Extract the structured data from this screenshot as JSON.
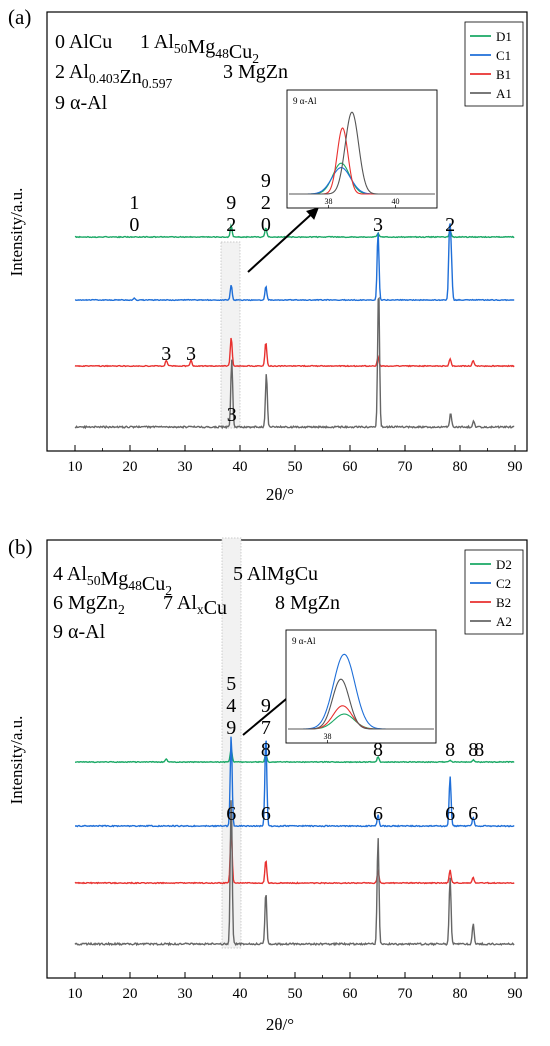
{
  "chart_data": [
    {
      "type": "line",
      "panel": "(a)",
      "xlabel": "2θ/°",
      "ylabel": "Intensity/a.u.",
      "xlim": [
        10,
        90
      ],
      "xticks": [
        "10",
        "20",
        "30",
        "40",
        "50",
        "60",
        "70",
        "80",
        "90"
      ],
      "phase_legend": [
        {
          "n": "0",
          "name": "AlCu"
        },
        {
          "n": "1",
          "name": "Al",
          "sub1": "50",
          "mid": "Mg",
          "sub2": "48",
          "tail": "Cu",
          "sub3": "2"
        },
        {
          "n": "2",
          "name": "Al",
          "sub1": "0.403",
          "mid": "Zn",
          "sub2": "0.597"
        },
        {
          "n": "3",
          "name": "MgZn"
        },
        {
          "n": "9",
          "name": "α-Al"
        }
      ],
      "series": [
        {
          "name": "D1",
          "color": "#1aa865",
          "peaks": [
            [
              38.4,
              0.16
            ],
            [
              44.7,
              0.13
            ],
            [
              65.1,
              0.05
            ],
            [
              78.2,
              0.09
            ]
          ]
        },
        {
          "name": "C1",
          "color": "#1f6fd8",
          "peaks": [
            [
              20.8,
              0.03
            ],
            [
              38.4,
              0.22
            ],
            [
              44.7,
              0.2
            ],
            [
              65.1,
              1.0
            ],
            [
              78.1,
              1.0
            ],
            [
              78.4,
              0.6
            ]
          ]
        },
        {
          "name": "B1",
          "color": "#e8312f",
          "peaks": [
            [
              26.6,
              0.08
            ],
            [
              31.1,
              0.08
            ],
            [
              38.4,
              0.4
            ],
            [
              44.7,
              0.33
            ],
            [
              65.1,
              0.12
            ],
            [
              78.2,
              0.1
            ],
            [
              82.4,
              0.08
            ]
          ]
        },
        {
          "name": "A1",
          "color": "#666666",
          "peaks": [
            [
              38.5,
              0.48
            ],
            [
              44.8,
              0.38
            ],
            [
              65.2,
              1.0
            ],
            [
              78.3,
              0.1
            ],
            [
              82.5,
              0.04
            ]
          ]
        }
      ],
      "annotations": [
        {
          "text": "1",
          "x": 20.8,
          "row": 0,
          "level": 2
        },
        {
          "text": "0",
          "x": 20.8,
          "row": 0,
          "level": 1
        },
        {
          "text": "9",
          "x": 38.4,
          "row": 0,
          "level": 2
        },
        {
          "text": "2",
          "x": 38.4,
          "row": 0,
          "level": 1
        },
        {
          "text": "9",
          "x": 44.7,
          "row": 0,
          "level": 3
        },
        {
          "text": "2",
          "x": 44.7,
          "row": 0,
          "level": 2
        },
        {
          "text": "0",
          "x": 44.7,
          "row": 0,
          "level": 1
        },
        {
          "text": "3",
          "x": 65.1,
          "row": 0,
          "level": 1
        },
        {
          "text": "2",
          "x": 78.2,
          "row": 0,
          "level": 1
        },
        {
          "text": "3",
          "x": 26.6,
          "row": 2,
          "level": 1
        },
        {
          "text": "3",
          "x": 31.1,
          "row": 2,
          "level": 1
        },
        {
          "text": "3",
          "x": 38.5,
          "row": 3,
          "level": 1
        }
      ],
      "inset": {
        "title": "9 α-Al",
        "xticks": [
          "38",
          "40"
        ],
        "peaks": [
          {
            "series": "D1",
            "color": "#1aa865",
            "center": 38.38,
            "height": 0.35,
            "width": 0.25
          },
          {
            "series": "C1",
            "color": "#1f6fd8",
            "center": 38.38,
            "height": 0.3,
            "width": 0.28
          },
          {
            "series": "B1",
            "color": "#e8312f",
            "center": 38.42,
            "height": 0.75,
            "width": 0.16
          },
          {
            "series": "A1",
            "color": "#555555",
            "center": 38.7,
            "height": 0.93,
            "width": 0.2
          }
        ]
      }
    },
    {
      "type": "line",
      "panel": "(b)",
      "xlabel": "2θ/°",
      "ylabel": "Intensity/a.u.",
      "xlim": [
        10,
        90
      ],
      "xticks": [
        "10",
        "20",
        "30",
        "40",
        "50",
        "60",
        "70",
        "80",
        "90"
      ],
      "phase_legend": [
        {
          "n": "4",
          "name": "Al",
          "sub1": "50",
          "mid": "Mg",
          "sub2": "48",
          "tail": "Cu",
          "sub3": "2"
        },
        {
          "n": "5",
          "name": "AlMgCu"
        },
        {
          "n": "6",
          "name": "MgZn",
          "sub1": "2"
        },
        {
          "n": "7",
          "name": "Al",
          "sub1": "x",
          "mid": "Cu"
        },
        {
          "n": "8",
          "name": "MgZn"
        },
        {
          "n": "9",
          "name": "α-Al"
        }
      ],
      "series": [
        {
          "name": "D2",
          "color": "#1aa865",
          "peaks": [
            [
              26.6,
              0.05
            ],
            [
              38.4,
              0.2
            ],
            [
              44.7,
              0.13
            ],
            [
              65.1,
              0.08
            ],
            [
              78.2,
              0.03
            ],
            [
              82.4,
              0.03
            ]
          ]
        },
        {
          "name": "C2",
          "color": "#1f6fd8",
          "peaks": [
            [
              38.4,
              1.0
            ],
            [
              44.7,
              1.0
            ],
            [
              65.1,
              0.12
            ],
            [
              78.2,
              0.55
            ],
            [
              82.4,
              0.1
            ]
          ]
        },
        {
          "name": "B2",
          "color": "#e8312f",
          "peaks": [
            [
              38.4,
              0.7
            ],
            [
              44.7,
              0.3
            ],
            [
              65.1,
              0.15
            ],
            [
              78.2,
              0.17
            ],
            [
              82.4,
              0.07
            ]
          ]
        },
        {
          "name": "A2",
          "color": "#666666",
          "peaks": [
            [
              38.4,
              1.0
            ],
            [
              44.7,
              0.35
            ],
            [
              65.1,
              0.72
            ],
            [
              78.2,
              0.45
            ],
            [
              82.4,
              0.14
            ]
          ]
        }
      ],
      "annotations": [
        {
          "text": "5",
          "x": 38.4,
          "row": 0,
          "level": 4
        },
        {
          "text": "4",
          "x": 38.4,
          "row": 0,
          "level": 3
        },
        {
          "text": "9",
          "x": 38.4,
          "row": 0,
          "level": 2
        },
        {
          "text": "9",
          "x": 44.7,
          "row": 0,
          "level": 3
        },
        {
          "text": "7",
          "x": 44.7,
          "row": 0,
          "level": 2
        },
        {
          "text": "8",
          "x": 44.7,
          "row": 0,
          "level": 1
        },
        {
          "text": "8",
          "x": 65.1,
          "row": 0,
          "level": 1
        },
        {
          "text": "8",
          "x": 78.2,
          "row": 0,
          "level": 1
        },
        {
          "text": "8",
          "x": 82.4,
          "row": 0,
          "level": 1
        },
        {
          "text": "8",
          "x": 82.4,
          "row": 0,
          "level": 1
        },
        {
          "text": "6",
          "x": 38.4,
          "row": 1,
          "level": 1
        },
        {
          "text": "6",
          "x": 44.7,
          "row": 1,
          "level": 1
        },
        {
          "text": "6",
          "x": 65.1,
          "row": 1,
          "level": 1
        },
        {
          "text": "6",
          "x": 78.2,
          "row": 1,
          "level": 1
        },
        {
          "text": "6",
          "x": 82.4,
          "row": 1,
          "level": 0
        }
      ],
      "inset": {
        "title": "9 α-Al",
        "xticks": [
          "38"
        ],
        "peaks": [
          {
            "series": "D2",
            "color": "#1aa865",
            "center": 38.5,
            "height": 0.18,
            "width": 0.3
          },
          {
            "series": "C2",
            "color": "#1f6fd8",
            "center": 38.5,
            "height": 0.9,
            "width": 0.32
          },
          {
            "series": "B2",
            "color": "#e8312f",
            "center": 38.45,
            "height": 0.28,
            "width": 0.28
          },
          {
            "series": "A2",
            "color": "#555555",
            "center": 38.4,
            "height": 0.6,
            "width": 0.25
          }
        ]
      }
    }
  ]
}
